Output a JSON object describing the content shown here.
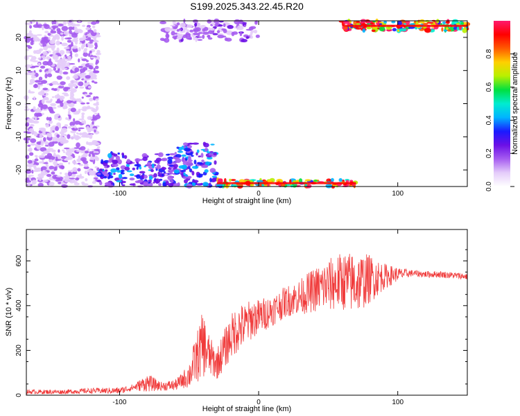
{
  "title": "S199.2025.343.22.45.R20",
  "colors": {
    "snr_line": "#f03a3a",
    "cmap": [
      "#ffffff",
      "#e4ccfa",
      "#a65cf0",
      "#6b10e6",
      "#1a1aff",
      "#00b4ff",
      "#00ecd0",
      "#00e040",
      "#b8f000",
      "#ffd000",
      "#ff5a00",
      "#ff0000",
      "#ff1a6e"
    ]
  },
  "chart_data": [
    {
      "type": "heatmap",
      "xlabel": "Height of straight line (km)",
      "ylabel": "Frequency (Hz)",
      "xlim": [
        -167,
        150
      ],
      "ylim": [
        -25,
        25
      ],
      "xticks": [
        -100,
        0,
        100
      ],
      "yticks": [
        -20,
        -10,
        0,
        10,
        20
      ],
      "colorbar": {
        "label": "Normalized spectral amplitude",
        "range": [
          0,
          1
        ],
        "ticks": [
          "0.0",
          "0.2",
          "0.4",
          "0.6",
          "0.8"
        ]
      },
      "features": [
        {
          "x": [
            -167,
            -115
          ],
          "y": [
            -25,
            25
          ],
          "amplitude": 0.15
        },
        {
          "x": [
            -115,
            -60
          ],
          "y": [
            -25,
            -15
          ],
          "amplitude": 0.35
        },
        {
          "x": [
            -60,
            -30
          ],
          "y": [
            -25,
            -12
          ],
          "amplitude": 0.4
        },
        {
          "x": [
            -30,
            70
          ],
          "y": [
            -25,
            -23
          ],
          "amplitude": 0.95
        },
        {
          "x": [
            -70,
            0
          ],
          "y": [
            19,
            25
          ],
          "amplitude": 0.2
        },
        {
          "x": [
            60,
            150
          ],
          "y": [
            22,
            25
          ],
          "amplitude": 0.95
        }
      ]
    },
    {
      "type": "line",
      "xlabel": "Height of straight line (km)",
      "ylabel": "SNR (10 * v/v)",
      "xlim": [
        -167,
        150
      ],
      "ylim": [
        0,
        740
      ],
      "xticks": [
        -100,
        0,
        100
      ],
      "yticks": [
        0,
        200,
        400,
        600
      ],
      "series": [
        {
          "x": [
            -167,
            -140,
            -120,
            -100,
            -90,
            -80,
            -70,
            -60,
            -55,
            -50,
            -45,
            -40,
            -35,
            -30,
            -25,
            -20,
            -15,
            -10,
            -5,
            0,
            10,
            20,
            30,
            40,
            50,
            60,
            70,
            80,
            90,
            100,
            110,
            120,
            130,
            140,
            150
          ],
          "values": [
            15,
            15,
            20,
            20,
            35,
            55,
            40,
            45,
            65,
            90,
            160,
            230,
            170,
            140,
            200,
            260,
            300,
            310,
            340,
            350,
            380,
            420,
            440,
            470,
            490,
            510,
            500,
            520,
            530,
            540,
            545,
            540,
            540,
            535,
            530
          ],
          "amplitude": [
            10,
            10,
            12,
            15,
            15,
            40,
            20,
            25,
            35,
            60,
            110,
            150,
            90,
            70,
            90,
            100,
            110,
            100,
            90,
            80,
            70,
            70,
            80,
            100,
            120,
            130,
            140,
            110,
            60,
            30,
            15,
            15,
            15,
            15,
            15
          ]
        }
      ]
    }
  ]
}
